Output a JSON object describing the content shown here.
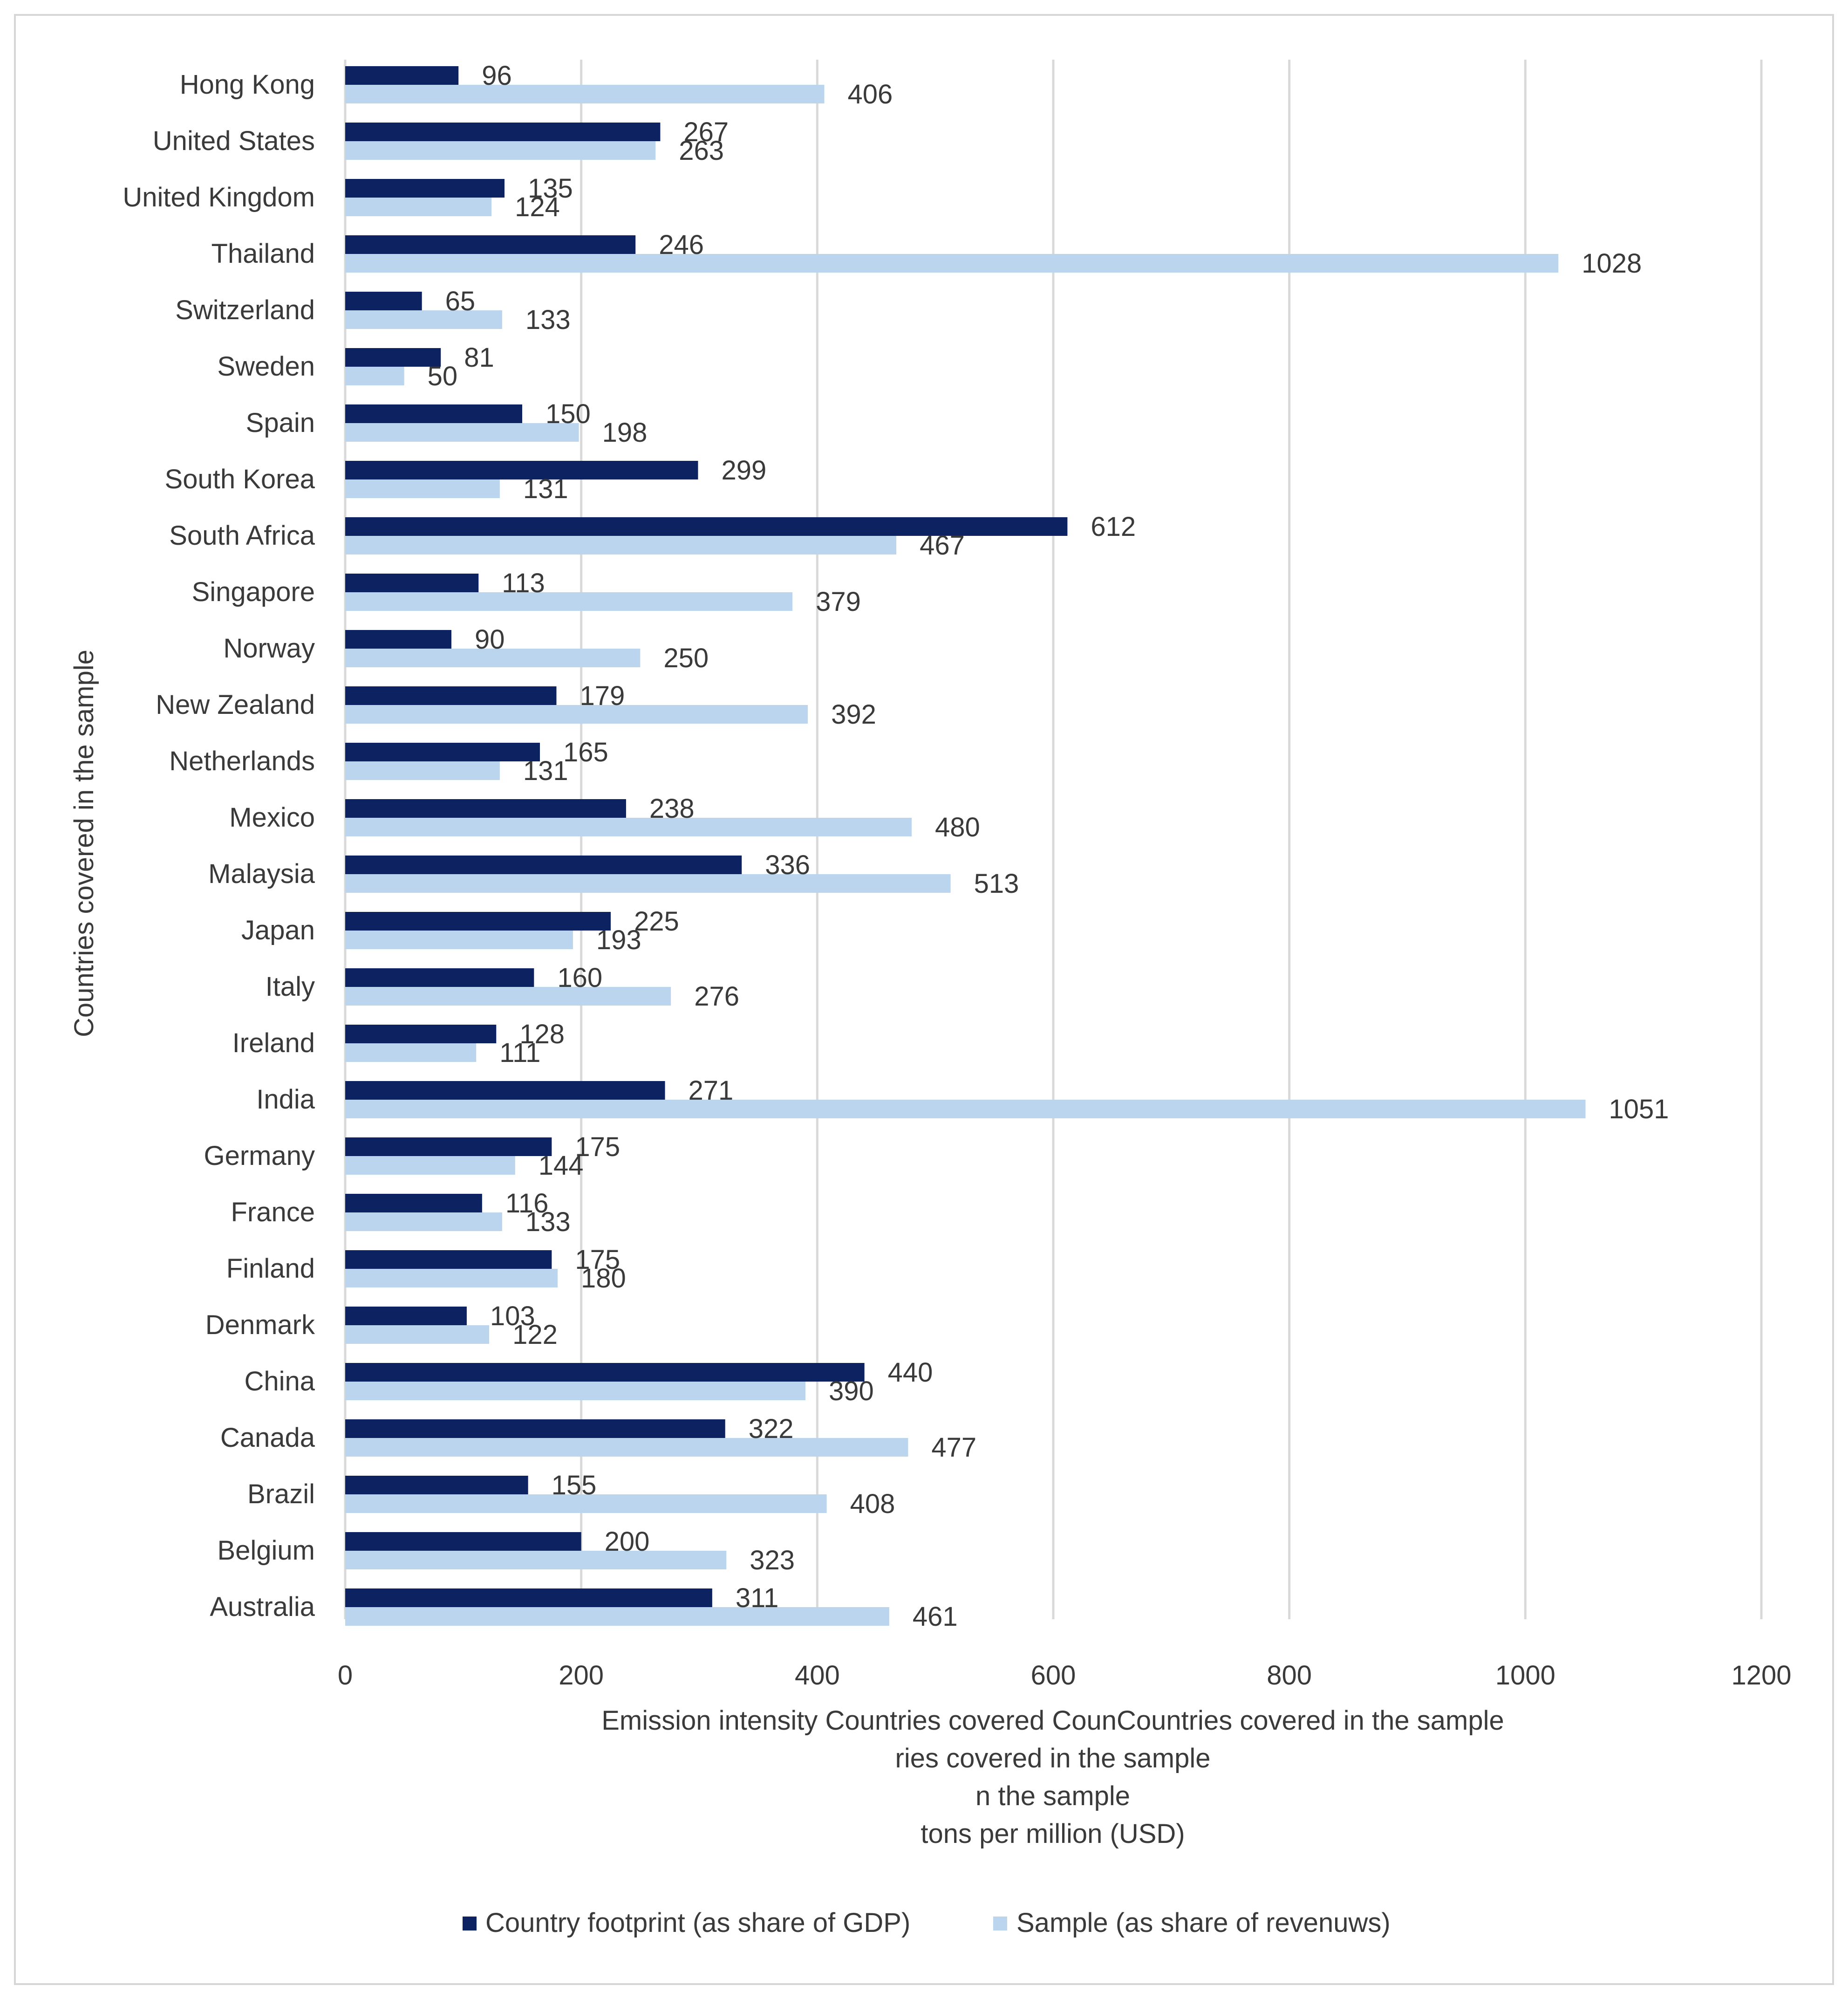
{
  "chart_data": {
    "type": "bar",
    "orientation": "horizontal",
    "categories": [
      "Hong Kong",
      "United States",
      "United Kingdom",
      "Thailand",
      "Switzerland",
      "Sweden",
      "Spain",
      "South Korea",
      "South Africa",
      "Singapore",
      "Norway",
      "New Zealand",
      "Netherlands",
      "Mexico",
      "Malaysia",
      "Japan",
      "Italy",
      "Ireland",
      "India",
      "Germany",
      "France",
      "Finland",
      "Denmark",
      "China",
      "Canada",
      "Brazil",
      "Belgium",
      "Australia"
    ],
    "series": [
      {
        "name": "Country footprint (as share of GDP)",
        "color": "#0d2260",
        "values": [
          96,
          267,
          135,
          246,
          65,
          81,
          150,
          299,
          612,
          113,
          90,
          179,
          165,
          238,
          336,
          225,
          160,
          128,
          271,
          175,
          116,
          175,
          103,
          440,
          322,
          155,
          200,
          311
        ]
      },
      {
        "name": "Sample (as share of revenuws)",
        "color": "#bcd5ee",
        "values": [
          406,
          263,
          124,
          1028,
          133,
          50,
          198,
          131,
          467,
          379,
          250,
          392,
          131,
          480,
          513,
          193,
          276,
          111,
          1051,
          144,
          133,
          180,
          122,
          390,
          477,
          408,
          323,
          461
        ]
      }
    ],
    "xlim": [
      0,
      1200
    ],
    "xticks": [
      "0",
      "200",
      "400",
      "600",
      "800",
      "1000",
      "1200"
    ],
    "ylabel": "Countries covered in the sample",
    "xlabel_lines": [
      "Emission intensity Countries covered CounCountries covered in the sample",
      "ries covered in the sample",
      "n the sample",
      "tons per million (USD)"
    ],
    "grid": "vertical",
    "legend_position": "bottom"
  }
}
